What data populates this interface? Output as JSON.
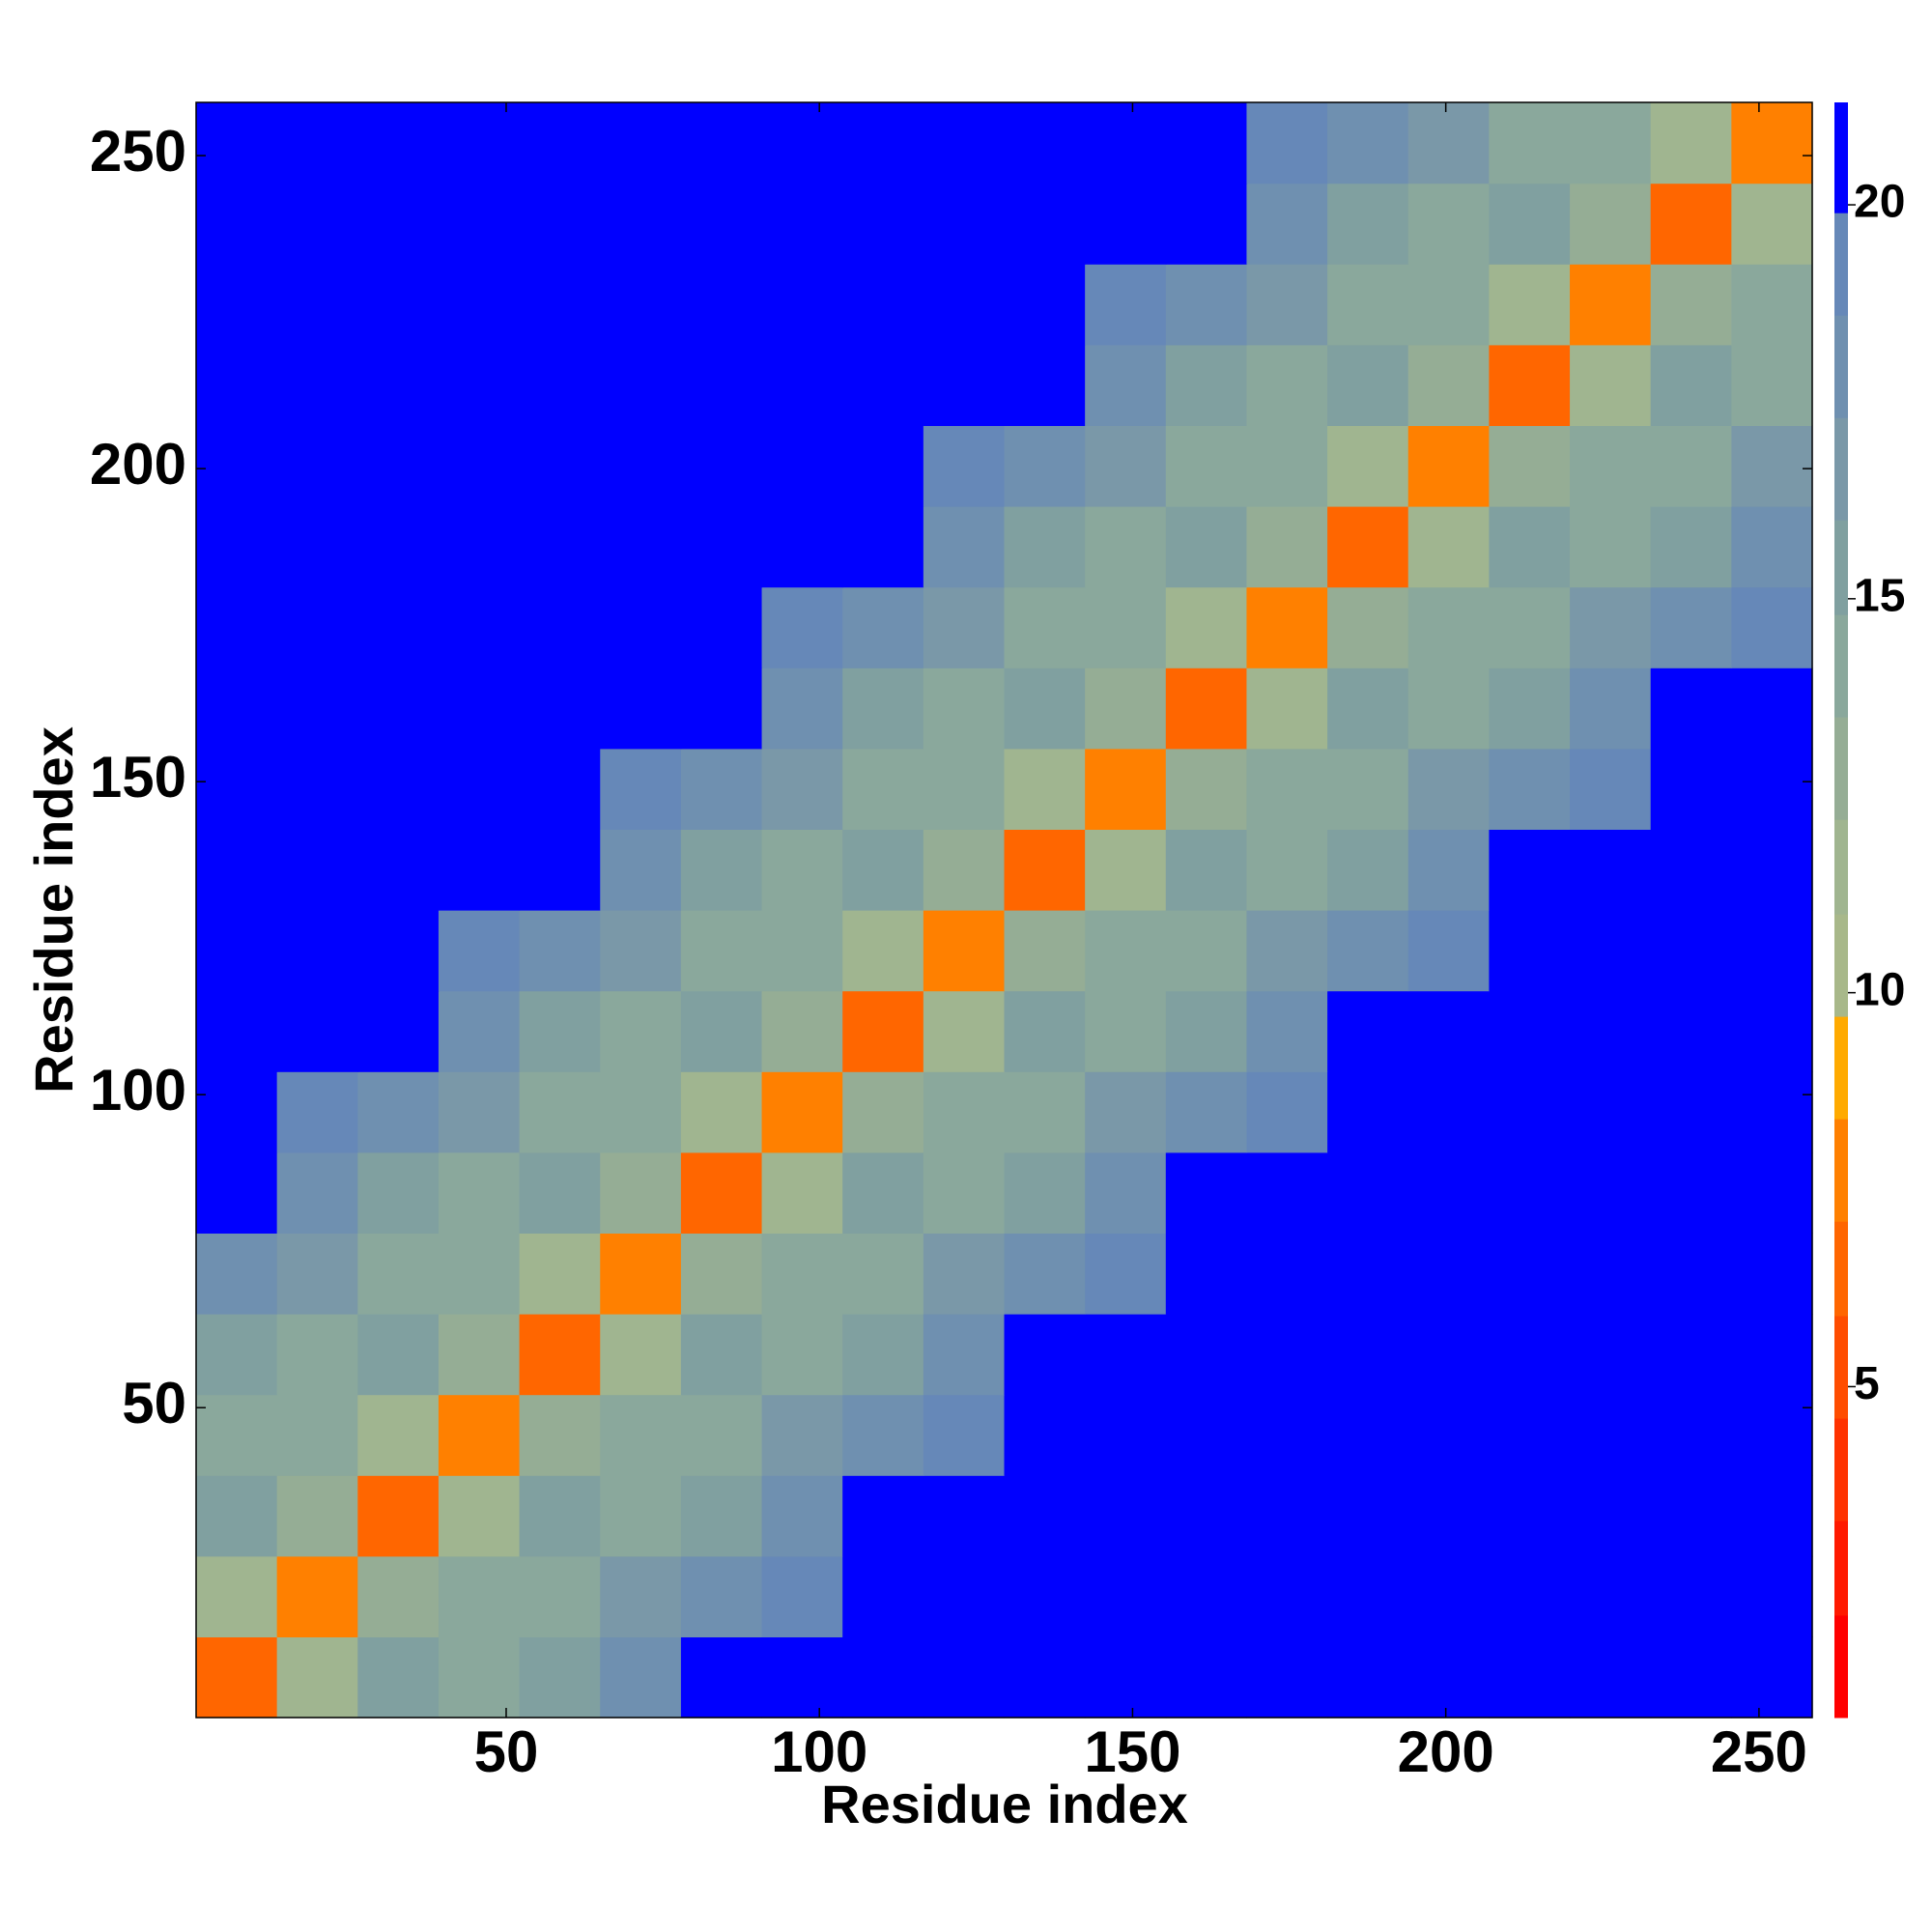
{
  "chart_data": {
    "type": "heatmap",
    "xlabel": "Residue index",
    "ylabel": "Residue index",
    "xlim": [
      0.5,
      258.5
    ],
    "ylim": [
      0.5,
      258.5
    ],
    "xticks": [
      50,
      100,
      150,
      200,
      250
    ],
    "yticks": [
      50,
      100,
      150,
      200,
      250
    ],
    "clim": [
      0.8,
      21.3
    ],
    "cticks": [
      5,
      10,
      15,
      20
    ],
    "levels": [
      0.8,
      2.1,
      3.3,
      4.6,
      5.9,
      7.1,
      8.4,
      9.7,
      11.0,
      12.2,
      13.5,
      14.8,
      16.0,
      17.3,
      18.6,
      19.9,
      21.3
    ],
    "colors": [
      "#ff0000",
      "#ff1a00",
      "#ff3300",
      "#ff4d00",
      "#ff6600",
      "#ff8000",
      "#ffaa00",
      "#a8b88a",
      "#a0b590",
      "#95ad95",
      "#8aa89c",
      "#80a0a0",
      "#7a98a8",
      "#6f90b0",
      "#6688b8",
      "#0000ff"
    ],
    "z": [
      [
        6.5,
        11.5,
        15.5,
        14.5,
        15.5,
        17.5,
        20,
        21.5,
        25,
        25,
        25,
        25,
        25,
        25,
        25,
        25,
        25,
        25,
        25,
        25
      ],
      [
        11.5,
        7.5,
        12.5,
        14.5,
        13.5,
        16.5,
        18.5,
        19,
        20.5,
        25,
        25,
        25,
        25,
        25,
        25,
        25,
        25,
        25,
        25,
        25
      ],
      [
        15.5,
        12.5,
        6.5,
        11.5,
        15.5,
        14.5,
        15.5,
        17.5,
        20,
        21.5,
        25,
        25,
        25,
        25,
        25,
        25,
        25,
        25,
        25,
        25
      ],
      [
        14.5,
        14.5,
        11.5,
        7.5,
        12.5,
        14.5,
        13.5,
        16.5,
        18.5,
        19,
        20.5,
        25,
        25,
        25,
        25,
        25,
        25,
        25,
        25,
        25
      ],
      [
        15.5,
        13.5,
        15.5,
        12.5,
        6.5,
        11.5,
        15.5,
        14.5,
        15.5,
        17.5,
        20,
        21.5,
        25,
        25,
        25,
        25,
        25,
        25,
        25,
        25
      ],
      [
        17.5,
        16.5,
        14.5,
        14.5,
        11.5,
        7.5,
        12.5,
        14.5,
        13.5,
        16.5,
        18.5,
        19,
        20.5,
        25,
        25,
        25,
        25,
        25,
        25,
        25
      ],
      [
        20,
        18.5,
        15.5,
        13.5,
        15.5,
        12.5,
        6.5,
        11.5,
        15.5,
        14.5,
        15.5,
        17.5,
        20,
        21.5,
        25,
        25,
        25,
        25,
        25,
        25
      ],
      [
        21.5,
        19,
        17.5,
        16.5,
        14.5,
        14.5,
        11.5,
        7.5,
        12.5,
        14.5,
        13.5,
        16.5,
        18.5,
        19,
        20.5,
        25,
        25,
        25,
        25,
        25
      ],
      [
        25,
        20.5,
        20,
        18.5,
        15.5,
        13.5,
        15.5,
        12.5,
        6.5,
        11.5,
        15.5,
        14.5,
        15.5,
        17.5,
        20,
        21.5,
        25,
        25,
        25,
        25
      ],
      [
        25,
        25,
        21.5,
        19,
        17.5,
        16.5,
        14.5,
        14.5,
        11.5,
        7.5,
        12.5,
        14.5,
        13.5,
        16.5,
        18.5,
        19,
        20.5,
        25,
        25,
        25
      ],
      [
        25,
        25,
        25,
        20.5,
        20,
        18.5,
        15.5,
        13.5,
        15.5,
        12.5,
        6.5,
        11.5,
        15.5,
        14.5,
        15.5,
        17.5,
        20,
        21.5,
        25,
        25
      ],
      [
        25,
        25,
        25,
        25,
        21.5,
        19,
        17.5,
        16.5,
        14.5,
        14.5,
        11.5,
        7.5,
        12.5,
        14.5,
        13.5,
        16.5,
        18.5,
        19,
        20.5,
        25
      ],
      [
        25,
        25,
        25,
        25,
        25,
        20.5,
        20,
        18.5,
        15.5,
        13.5,
        15.5,
        12.5,
        6.5,
        11.5,
        15.5,
        14.5,
        15.5,
        17.5,
        20,
        21.5
      ],
      [
        25,
        25,
        25,
        25,
        25,
        25,
        21.5,
        19,
        17.5,
        16.5,
        14.5,
        14.5,
        11.5,
        7.5,
        12.5,
        14.5,
        13.5,
        16.5,
        18.5,
        19
      ],
      [
        25,
        25,
        25,
        25,
        25,
        25,
        25,
        20.5,
        20,
        18.5,
        15.5,
        13.5,
        15.5,
        12.5,
        6.5,
        11.5,
        15.5,
        14.5,
        15.5,
        17.5
      ],
      [
        25,
        25,
        25,
        25,
        25,
        25,
        25,
        25,
        21.5,
        19,
        17.5,
        16.5,
        14.5,
        14.5,
        11.5,
        7.5,
        12.5,
        14.5,
        13.5,
        16.5
      ],
      [
        25,
        25,
        25,
        25,
        25,
        25,
        25,
        25,
        25,
        20.5,
        20,
        18.5,
        15.5,
        13.5,
        15.5,
        12.5,
        6.5,
        11.5,
        15.5,
        14.5
      ],
      [
        25,
        25,
        25,
        25,
        25,
        25,
        25,
        25,
        25,
        25,
        21.5,
        19,
        17.5,
        16.5,
        14.5,
        14.5,
        11.5,
        7.5,
        12.5,
        14.5
      ],
      [
        25,
        25,
        25,
        25,
        25,
        25,
        25,
        25,
        25,
        25,
        25,
        20.5,
        20,
        18.5,
        15.5,
        13.5,
        15.5,
        12.5,
        6.5,
        11.5
      ],
      [
        25,
        25,
        25,
        25,
        25,
        25,
        25,
        25,
        25,
        25,
        25,
        25,
        21.5,
        19,
        17.5,
        16.5,
        14.5,
        14.5,
        11.5,
        7.5
      ]
    ]
  }
}
